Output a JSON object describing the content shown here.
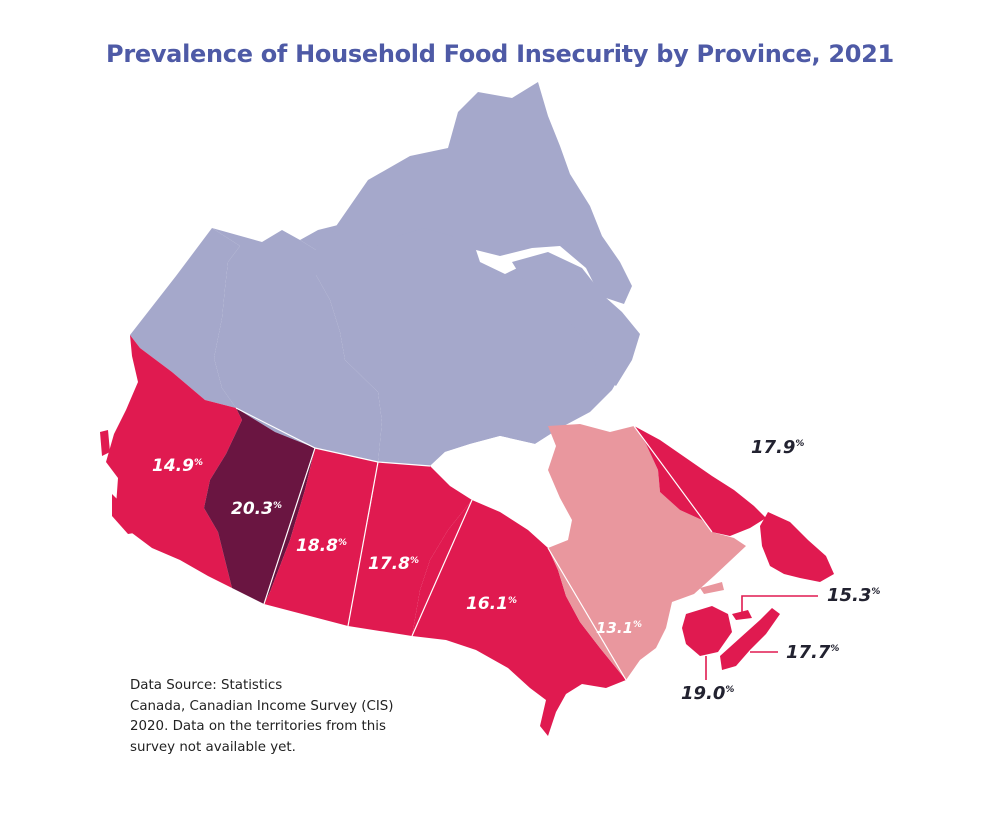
{
  "title": "Prevalence of Household Food Insecurity by Province, 2021",
  "colors": {
    "territories": "#a5a8cb",
    "quebec": "#e9979e",
    "province": "#e01a50",
    "highest": "#6a1541",
    "callout": "#e01a50",
    "title": "#4e5aa6"
  },
  "map_data": {
    "type": "choropleth",
    "unit": "%",
    "regions": [
      {
        "name": "British Columbia",
        "value": 14.9,
        "label": "14.9"
      },
      {
        "name": "Alberta",
        "value": 20.3,
        "label": "20.3"
      },
      {
        "name": "Saskatchewan",
        "value": 18.8,
        "label": "18.8"
      },
      {
        "name": "Manitoba",
        "value": 17.8,
        "label": "17.8"
      },
      {
        "name": "Ontario",
        "value": 16.1,
        "label": "16.1"
      },
      {
        "name": "Quebec",
        "value": 13.1,
        "label": "13.1"
      },
      {
        "name": "Newfoundland and Labrador",
        "value": 17.9,
        "label": "17.9"
      },
      {
        "name": "Prince Edward Island",
        "value": 15.3,
        "label": "15.3"
      },
      {
        "name": "Nova Scotia",
        "value": 17.7,
        "label": "17.7"
      },
      {
        "name": "New Brunswick",
        "value": 19.0,
        "label": "19.0"
      }
    ],
    "territories_note": "no data"
  },
  "source": {
    "lines": [
      "Data Source: Statistics",
      "Canada, Canadian Income Survey (CIS)",
      "2020. Data on the territories from this",
      "survey not available yet."
    ]
  }
}
